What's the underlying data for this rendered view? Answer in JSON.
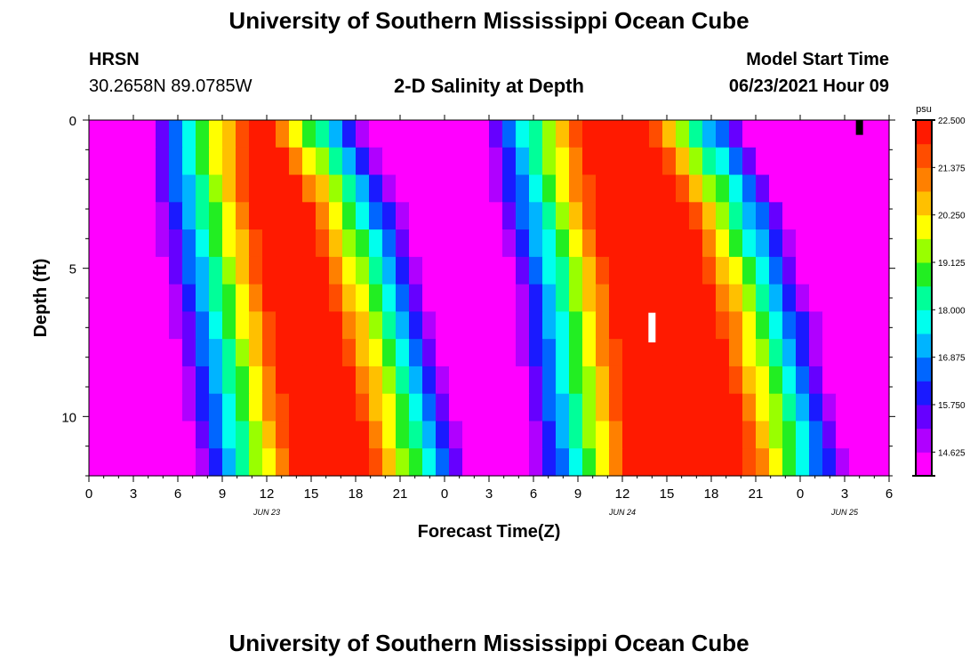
{
  "header": {
    "title": "University of Southern Mississippi Ocean Cube",
    "station": "HRSN",
    "coords": "30.2658N  89.0785W",
    "subtitle": "2-D Salinity at Depth",
    "model_label": "Model Start Time",
    "model_date": "06/23/2021 Hour 09"
  },
  "footer": {
    "title": "University of Southern Mississippi Ocean Cube"
  },
  "chart_data": {
    "type": "heatmap",
    "title": "2-D Salinity at Depth",
    "xlabel": "Forecast Time(Z)",
    "ylabel": "Depth (ft)",
    "x_unit": "hours",
    "x_range": [
      0,
      54
    ],
    "x_ticks": [
      "0",
      "3",
      "6",
      "9",
      "12",
      "15",
      "18",
      "21",
      "0",
      "3",
      "6",
      "9",
      "12",
      "15",
      "18",
      "21",
      "0",
      "3",
      "6"
    ],
    "date_labels": [
      {
        "text": "JUN 23",
        "at_hour": 12
      },
      {
        "text": "JUN 24",
        "at_hour": 36
      },
      {
        "text": "JUN 25",
        "at_hour": 51
      }
    ],
    "y_range": [
      0,
      12
    ],
    "y_ticks": [
      "0",
      "5",
      "10"
    ],
    "y_inverted": true,
    "colorbar": {
      "unit": "psu",
      "min": 14.0625,
      "max": 22.5,
      "tick_labels": [
        "22.500",
        "21.375",
        "20.250",
        "19.125",
        "18.000",
        "16.875",
        "15.750",
        "14.625"
      ],
      "colors": [
        "#ff00ff",
        "#b000ff",
        "#6600ff",
        "#1a1aff",
        "#0066ff",
        "#00b4ff",
        "#00ffee",
        "#00ff99",
        "#22ee22",
        "#99ff00",
        "#ffff00",
        "#ffc000",
        "#ff8000",
        "#ff4d00",
        "#ff1a00"
      ]
    },
    "depth_levels": [
      0,
      1,
      2,
      3,
      4,
      5,
      6,
      7,
      8,
      9,
      10,
      11,
      12
    ],
    "red_band_1": {
      "left_edge_hours": [
        10.8,
        10.8,
        11.1,
        11.4,
        11.7,
        12.0,
        12.3,
        12.6,
        12.9,
        13.2,
        13.4,
        13.7,
        14.0
      ],
      "right_edge_hours": [
        12.0,
        13.0,
        14.0,
        14.6,
        15.2,
        15.7,
        16.2,
        16.7,
        17.1,
        17.6,
        18.0,
        18.4,
        18.8
      ]
    },
    "red_band_2": {
      "left_edge_hours": [
        33.5,
        33.8,
        34.1,
        34.5,
        34.9,
        35.2,
        35.5,
        35.7,
        35.9,
        36.1,
        36.3,
        36.5,
        36.7
      ],
      "right_edge_hours": [
        37.5,
        38.5,
        39.5,
        40.2,
        40.8,
        41.4,
        41.9,
        42.4,
        42.8,
        43.2,
        43.6,
        44.0,
        44.3
      ]
    },
    "markers": [
      {
        "name": "white-marker",
        "color": "#ffffff",
        "hour": 38,
        "depth_from": 6.5,
        "depth_to": 7.5
      },
      {
        "name": "black-marker",
        "color": "#000000",
        "hour": 52,
        "depth_from": 0.0,
        "depth_to": 0.5
      }
    ]
  }
}
